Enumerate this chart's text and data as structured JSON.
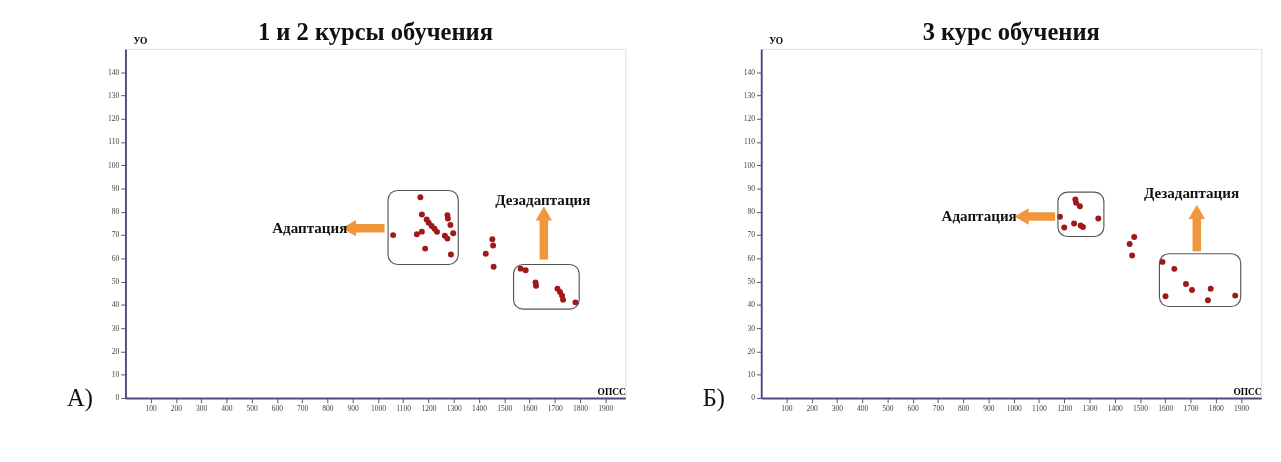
{
  "chart_data": [
    {
      "type": "scatter",
      "title": "1 и 2 курсы обучения",
      "xlabel": "ОПСС",
      "ylabel": "УО",
      "marker": "circle",
      "grid": false,
      "annotations": [
        "А)",
        "Адаптация",
        "Дезадаптация"
      ],
      "xlim": [
        0,
        1980
      ],
      "ylim": [
        0,
        150
      ],
      "xticks": [
        100,
        200,
        300,
        400,
        500,
        600,
        700,
        800,
        900,
        1000,
        1100,
        1200,
        1300,
        1400,
        1500,
        1600,
        1700,
        1800,
        1900
      ],
      "yticks": [
        0,
        10,
        20,
        30,
        40,
        50,
        60,
        70,
        80,
        90,
        100,
        110,
        120,
        130,
        140
      ],
      "series": [
        {
          "color": "#a01818",
          "x": [
            1168,
            1060,
            1154,
            1174,
            1187,
            1174,
            1193,
            1201,
            1213,
            1224,
            1234,
            1275,
            1277,
            1287,
            1298,
            1265,
            1275,
            1289,
            1453,
            1456,
            1427,
            1458,
            1565,
            1585,
            1624,
            1626,
            1711,
            1721,
            1729,
            1733,
            1782
          ],
          "values": [
            86.3,
            70.0,
            70.4,
            71.5,
            64.2,
            78.9,
            76.7,
            75.3,
            73.9,
            72.7,
            71.4,
            78.6,
            77.1,
            74.4,
            70.8,
            69.7,
            68.5,
            61.7,
            68.2,
            65.5,
            62.0,
            56.4,
            55.6,
            54.9,
            49.7,
            48.2,
            47.0,
            45.6,
            44.0,
            42.2,
            41.1
          ]
        }
      ]
    },
    {
      "type": "scatter",
      "title": "3 курс обучения",
      "xlabel": "ОПСС",
      "ylabel": "УО",
      "marker": "circle",
      "grid": false,
      "annotations": [
        "Б)",
        "Адаптация",
        "Дезадаптация"
      ],
      "xlim": [
        0,
        1980
      ],
      "ylim": [
        0,
        150
      ],
      "xticks": [
        100,
        200,
        300,
        400,
        500,
        600,
        700,
        800,
        900,
        1000,
        1100,
        1200,
        1300,
        1400,
        1500,
        1600,
        1700,
        1800,
        1900
      ],
      "yticks": [
        0,
        10,
        20,
        30,
        40,
        50,
        60,
        70,
        80,
        90,
        100,
        110,
        120,
        130,
        140
      ],
      "series": [
        {
          "color": "#a01818",
          "x": [
            1244,
            1247,
            1262,
            1183,
            1335,
            1239,
            1265,
            1274,
            1200,
            1477,
            1459,
            1469,
            1589,
            1636,
            1682,
            1706,
            1780,
            1601,
            1769,
            1877
          ],
          "values": [
            85.3,
            83.9,
            82.4,
            77.9,
            77.1,
            75.0,
            74.1,
            73.5,
            73.3,
            69.2,
            66.2,
            61.2,
            58.5,
            55.5,
            49.0,
            46.4,
            47.0,
            43.7,
            42.0,
            44.0
          ]
        }
      ]
    }
  ]
}
